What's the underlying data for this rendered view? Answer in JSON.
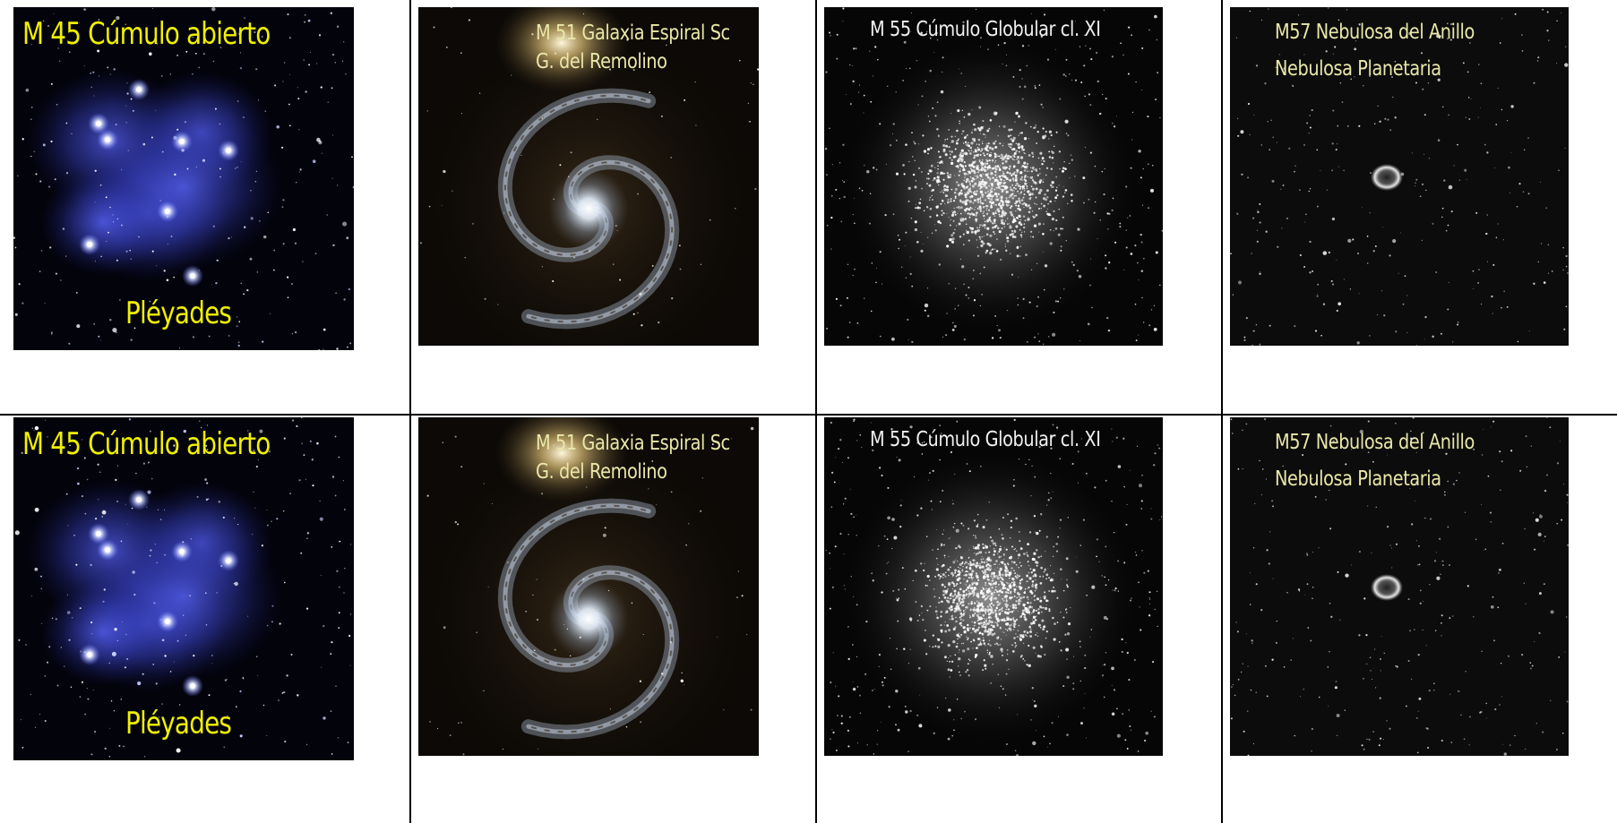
{
  "rows": [
    {
      "cells": [
        {
          "id": "m45",
          "caption_top": "M 45 Cúmulo abierto",
          "caption_bottom": "Pléyades",
          "type": "open-cluster"
        },
        {
          "id": "m51",
          "caption_top": "M 51 Galaxia Espiral Sc",
          "caption_bottom": "G. del Remolino",
          "type": "spiral-galaxy"
        },
        {
          "id": "m55",
          "caption_top": "M 55 Cúmulo Globular cl. XI",
          "type": "globular-cluster"
        },
        {
          "id": "m57",
          "caption_top": "M57 Nebulosa del Anillo",
          "caption_bottom": "Nebulosa Planetaria",
          "type": "planetary-nebula"
        }
      ]
    },
    {
      "cells": [
        {
          "id": "m45",
          "caption_top": "M 45 Cúmulo abierto",
          "caption_bottom": "Pléyades",
          "type": "open-cluster"
        },
        {
          "id": "m51",
          "caption_top": "M 51 Galaxia Espiral Sc",
          "caption_bottom": "G. del Remolino",
          "type": "spiral-galaxy"
        },
        {
          "id": "m55",
          "caption_top": "M 55 Cúmulo Globular cl. XI",
          "type": "globular-cluster"
        },
        {
          "id": "m57",
          "caption_top": "M57 Nebulosa del Anillo",
          "caption_bottom": "Nebulosa Planetaria",
          "type": "planetary-nebula"
        }
      ]
    }
  ],
  "colors": {
    "caption_yellow": "#f0f000",
    "caption_pale": "#e9e7a8",
    "caption_silver": "#efefef",
    "nebula_blue": "#4b55d8",
    "galaxy_core": "#e8f2ff"
  }
}
